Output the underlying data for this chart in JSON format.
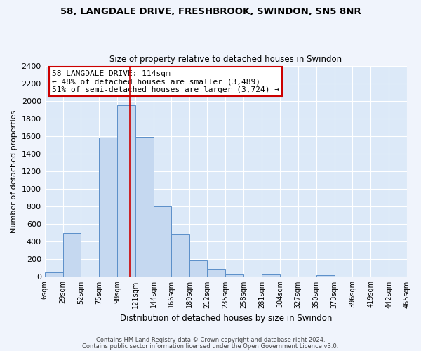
{
  "title1": "58, LANGDALE DRIVE, FRESHBROOK, SWINDON, SN5 8NR",
  "title2": "Size of property relative to detached houses in Swindon",
  "xlabel": "Distribution of detached houses by size in Swindon",
  "ylabel": "Number of detached properties",
  "bin_labels": [
    "6sqm",
    "29sqm",
    "52sqm",
    "75sqm",
    "98sqm",
    "121sqm",
    "144sqm",
    "166sqm",
    "189sqm",
    "212sqm",
    "235sqm",
    "258sqm",
    "281sqm",
    "304sqm",
    "327sqm",
    "350sqm",
    "373sqm",
    "396sqm",
    "419sqm",
    "442sqm",
    "465sqm"
  ],
  "bin_edges": [
    6,
    29,
    52,
    75,
    98,
    121,
    144,
    166,
    189,
    212,
    235,
    258,
    281,
    304,
    327,
    350,
    373,
    396,
    419,
    442,
    465
  ],
  "bar_heights": [
    50,
    500,
    0,
    1580,
    1950,
    1590,
    800,
    480,
    190,
    90,
    30,
    0,
    30,
    0,
    0,
    20,
    0,
    0,
    0,
    0
  ],
  "bar_color": "#c5d8f0",
  "bar_edge_color": "#5b8fc9",
  "vline_x": 114,
  "vline_color": "#cc0000",
  "ylim": [
    0,
    2400
  ],
  "yticks": [
    0,
    200,
    400,
    600,
    800,
    1000,
    1200,
    1400,
    1600,
    1800,
    2000,
    2200,
    2400
  ],
  "annotation_title": "58 LANGDALE DRIVE: 114sqm",
  "annotation_line1": "← 48% of detached houses are smaller (3,489)",
  "annotation_line2": "51% of semi-detached houses are larger (3,724) →",
  "annotation_box_color": "#ffffff",
  "annotation_box_edge": "#cc0000",
  "plot_bg_color": "#dce9f8",
  "fig_bg_color": "#f0f4fc",
  "footer1": "Contains HM Land Registry data © Crown copyright and database right 2024.",
  "footer2": "Contains public sector information licensed under the Open Government Licence v3.0."
}
